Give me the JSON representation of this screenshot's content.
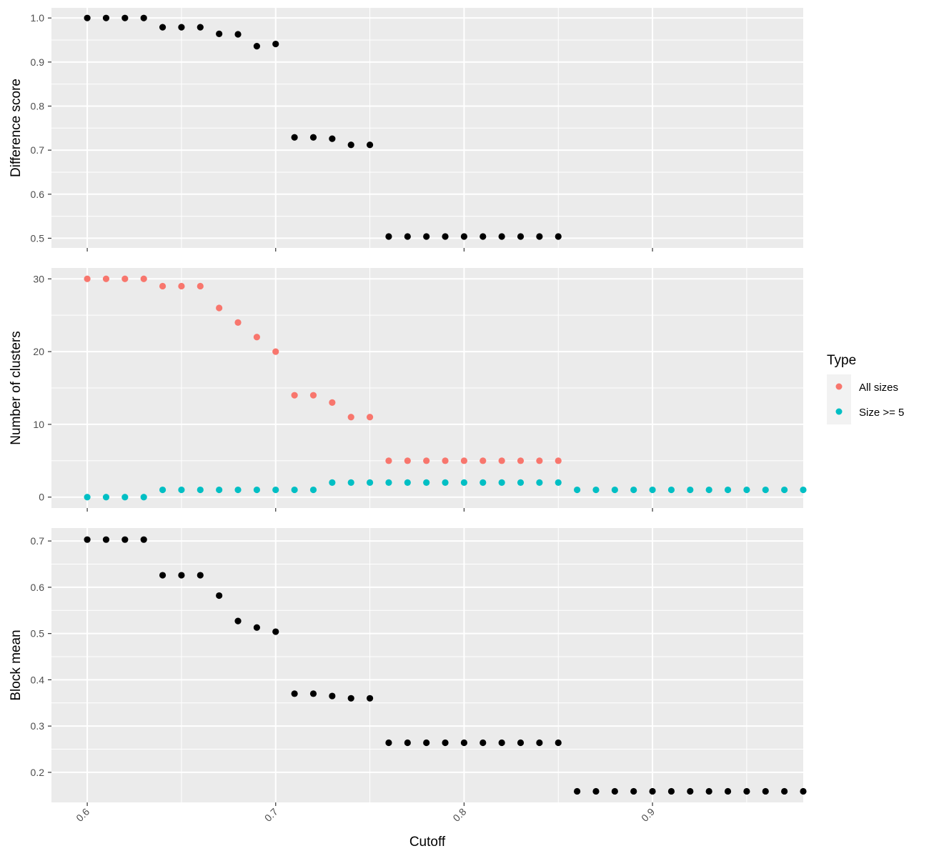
{
  "chart_data": {
    "type": "scatter",
    "xlabel": "Cutoff",
    "x_ticks": [
      0.6,
      0.7,
      0.8,
      0.9
    ],
    "x_tick_labels": [
      "0.6",
      "0.7",
      "0.8",
      "0.9"
    ],
    "xlim": [
      0.581,
      0.98
    ],
    "legend": {
      "title": "Type",
      "placement": "right",
      "entries": [
        {
          "label": "All sizes",
          "color": "#F8766D"
        },
        {
          "label": "Size >= 5",
          "color": "#00BFC4"
        }
      ]
    },
    "panels": [
      {
        "ylabel": "Difference score",
        "ylim": [
          0.478,
          1.023
        ],
        "y_ticks": [
          0.5,
          0.6,
          0.7,
          0.8,
          0.9,
          1.0
        ],
        "y_tick_labels": [
          "0.5",
          "0.6",
          "0.7",
          "0.8",
          "0.9",
          "1.0"
        ],
        "series": [
          {
            "color": "#000000",
            "x": [
              0.6,
              0.61,
              0.62,
              0.63,
              0.64,
              0.65,
              0.66,
              0.67,
              0.68,
              0.69,
              0.7,
              0.71,
              0.72,
              0.73,
              0.74,
              0.75,
              0.76,
              0.77,
              0.78,
              0.79,
              0.8,
              0.81,
              0.82,
              0.83,
              0.84,
              0.85
            ],
            "y": [
              1.0,
              1.0,
              1.0,
              1.0,
              0.979,
              0.979,
              0.979,
              0.964,
              0.963,
              0.936,
              0.941,
              0.729,
              0.729,
              0.726,
              0.712,
              0.712,
              0.504,
              0.504,
              0.504,
              0.504,
              0.504,
              0.504,
              0.504,
              0.504,
              0.504,
              0.504
            ]
          }
        ]
      },
      {
        "ylabel": "Number of clusters",
        "ylim": [
          -1.5,
          31.5
        ],
        "y_ticks": [
          0,
          10,
          20,
          30
        ],
        "y_tick_labels": [
          "0",
          "10",
          "20",
          "30"
        ],
        "series": [
          {
            "name": "All sizes",
            "color": "#F8766D",
            "x": [
              0.6,
              0.61,
              0.62,
              0.63,
              0.64,
              0.65,
              0.66,
              0.67,
              0.68,
              0.69,
              0.7,
              0.71,
              0.72,
              0.73,
              0.74,
              0.75,
              0.76,
              0.77,
              0.78,
              0.79,
              0.8,
              0.81,
              0.82,
              0.83,
              0.84,
              0.85
            ],
            "y": [
              30,
              30,
              30,
              30,
              29,
              29,
              29,
              26,
              24,
              22,
              20,
              14,
              14,
              13,
              11,
              11,
              5,
              5,
              5,
              5,
              5,
              5,
              5,
              5,
              5,
              5
            ]
          },
          {
            "name": "Size >= 5",
            "color": "#00BFC4",
            "x": [
              0.6,
              0.61,
              0.62,
              0.63,
              0.64,
              0.65,
              0.66,
              0.67,
              0.68,
              0.69,
              0.7,
              0.71,
              0.72,
              0.73,
              0.74,
              0.75,
              0.76,
              0.77,
              0.78,
              0.79,
              0.8,
              0.81,
              0.82,
              0.83,
              0.84,
              0.85,
              0.86,
              0.87,
              0.88,
              0.89,
              0.9,
              0.91,
              0.92,
              0.93,
              0.94,
              0.95,
              0.96,
              0.97,
              0.98
            ],
            "y": [
              0,
              0,
              0,
              0,
              1,
              1,
              1,
              1,
              1,
              1,
              1,
              1,
              1,
              2,
              2,
              2,
              2,
              2,
              2,
              2,
              2,
              2,
              2,
              2,
              2,
              2,
              1,
              1,
              1,
              1,
              1,
              1,
              1,
              1,
              1,
              1,
              1,
              1,
              1
            ]
          }
        ]
      },
      {
        "ylabel": "Block mean",
        "ylim": [
          0.135,
          0.728
        ],
        "y_ticks": [
          0.2,
          0.3,
          0.4,
          0.5,
          0.6,
          0.7
        ],
        "y_tick_labels": [
          "0.2",
          "0.3",
          "0.4",
          "0.5",
          "0.6",
          "0.7"
        ],
        "series": [
          {
            "color": "#000000",
            "x": [
              0.6,
              0.61,
              0.62,
              0.63,
              0.64,
              0.65,
              0.66,
              0.67,
              0.68,
              0.69,
              0.7,
              0.71,
              0.72,
              0.73,
              0.74,
              0.75,
              0.76,
              0.77,
              0.78,
              0.79,
              0.8,
              0.81,
              0.82,
              0.83,
              0.84,
              0.85,
              0.86,
              0.87,
              0.88,
              0.89,
              0.9,
              0.91,
              0.92,
              0.93,
              0.94,
              0.95,
              0.96,
              0.97,
              0.98
            ],
            "y": [
              0.703,
              0.703,
              0.703,
              0.703,
              0.626,
              0.626,
              0.626,
              0.582,
              0.527,
              0.513,
              0.504,
              0.37,
              0.37,
              0.365,
              0.36,
              0.36,
              0.264,
              0.264,
              0.264,
              0.264,
              0.264,
              0.264,
              0.264,
              0.264,
              0.264,
              0.264,
              0.159,
              0.159,
              0.159,
              0.159,
              0.159,
              0.159,
              0.159,
              0.159,
              0.159,
              0.159,
              0.159,
              0.159,
              0.159
            ]
          }
        ]
      }
    ]
  }
}
